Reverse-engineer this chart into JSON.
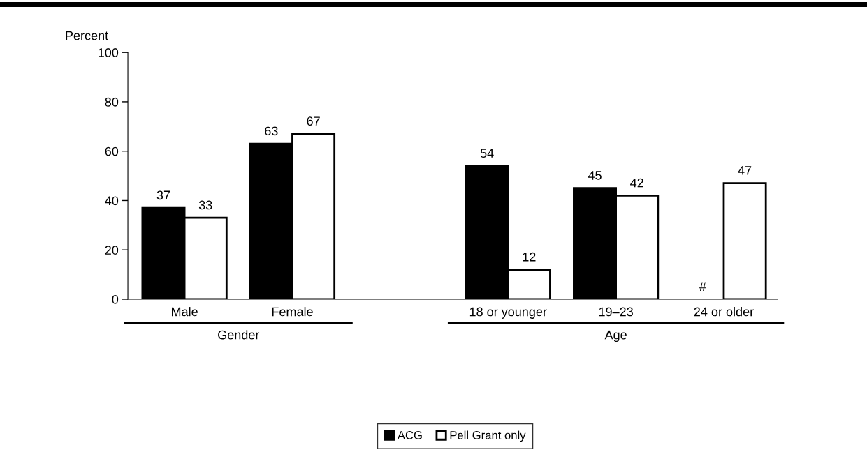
{
  "chart_data": {
    "type": "bar",
    "ylabel": "Percent",
    "categories": [
      "Male",
      "Female",
      null,
      "18 or younger",
      "19–23",
      "24 or older"
    ],
    "series": [
      {
        "name": "ACG",
        "color": "#000000",
        "values": [
          37,
          63,
          null,
          54,
          45,
          null
        ],
        "value_labels": [
          "37",
          "63",
          null,
          "54",
          "45",
          "#"
        ]
      },
      {
        "name": "Pell Grant only",
        "color": "#ffffff",
        "values": [
          33,
          67,
          null,
          12,
          42,
          47
        ],
        "value_labels": [
          "33",
          "67",
          null,
          "12",
          "42",
          "47"
        ]
      }
    ],
    "ylim": [
      0,
      100
    ],
    "yticks": [
      0,
      20,
      40,
      60,
      80,
      100
    ],
    "grid": false,
    "legend": "bottom",
    "annotations": [
      "Gender",
      "Age"
    ]
  }
}
